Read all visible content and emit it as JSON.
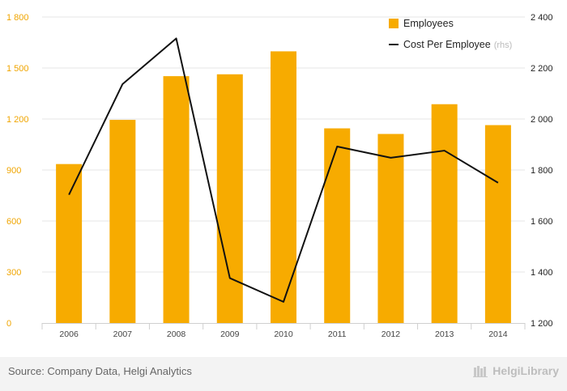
{
  "chart_data": {
    "type": "bar+line",
    "categories": [
      "2006",
      "2007",
      "2008",
      "2009",
      "2010",
      "2011",
      "2012",
      "2013",
      "2014"
    ],
    "series": [
      {
        "name": "Employees",
        "type": "bar",
        "axis": "left",
        "color": "#f7ab00",
        "values": [
          935,
          1195,
          1452,
          1463,
          1598,
          1145,
          1112,
          1287,
          1164
        ]
      },
      {
        "name": "Cost Per Employee",
        "type": "line",
        "axis": "right",
        "color": "#111111",
        "values": [
          1703,
          2137,
          2316,
          1376,
          1283,
          1892,
          1848,
          1876,
          1750
        ]
      }
    ],
    "left_axis": {
      "min": 0,
      "max": 1800,
      "ticks": [
        0,
        300,
        600,
        900,
        1200,
        1500,
        1800
      ],
      "tick_labels": [
        "0",
        "300",
        "600",
        "900",
        "1 200",
        "1 500",
        "1 800"
      ],
      "color": "#f0a500"
    },
    "right_axis": {
      "min": 1200,
      "max": 2400,
      "ticks": [
        1200,
        1400,
        1600,
        1800,
        2000,
        2200,
        2400
      ],
      "tick_labels": [
        "1 200",
        "1 400",
        "1 600",
        "1 800",
        "2 000",
        "2 200",
        "2 400"
      ]
    },
    "legend": {
      "placement": "top-right",
      "items": [
        {
          "label": "Employees",
          "suffix": "",
          "marker": "square"
        },
        {
          "label": "Cost Per Employee",
          "suffix": "(rhs)",
          "marker": "line"
        }
      ]
    },
    "grid": true
  },
  "footer": {
    "source": "Source: Company Data, Helgi Analytics",
    "brand": "HelgiLibrary"
  }
}
